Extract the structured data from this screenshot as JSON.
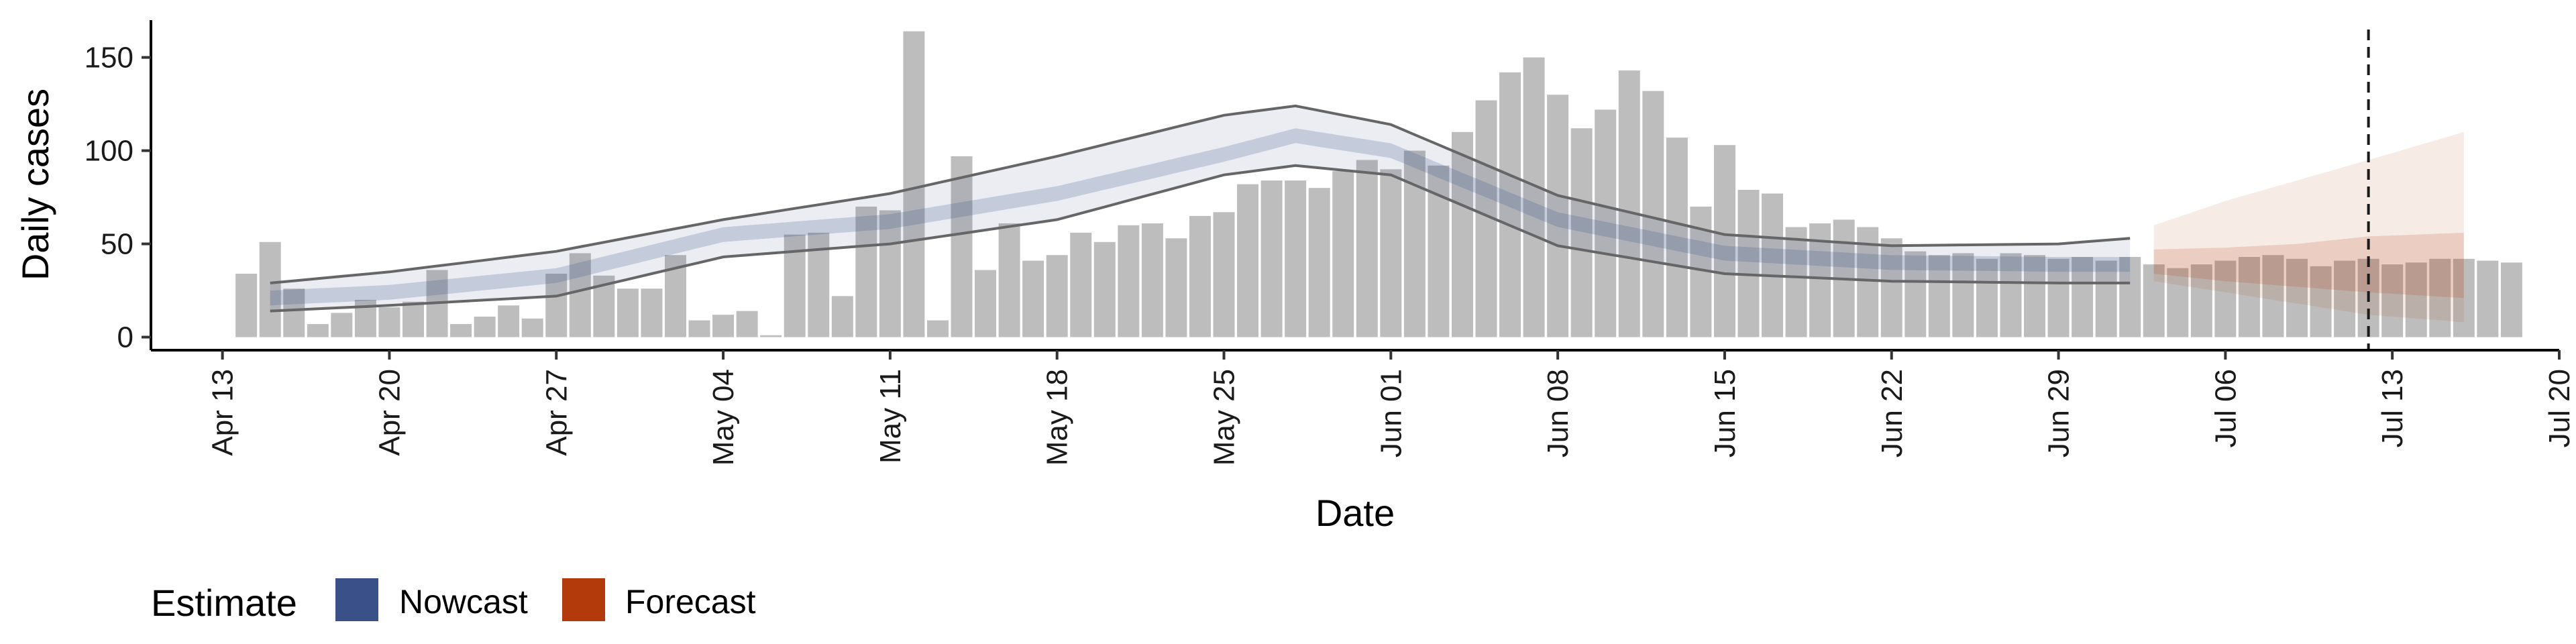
{
  "chart_data": {
    "type": "bar",
    "title": "",
    "xlabel": "Date",
    "ylabel": "Daily cases",
    "ylim": [
      -7,
      170
    ],
    "yticks": [
      0,
      50,
      100,
      150
    ],
    "xlim": [
      "2020-04-10",
      "2020-07-20"
    ],
    "xticks": [
      {
        "date": "2020-04-13",
        "label": "Apr 13"
      },
      {
        "date": "2020-04-20",
        "label": "Apr 20"
      },
      {
        "date": "2020-04-27",
        "label": "Apr 27"
      },
      {
        "date": "2020-05-04",
        "label": "May 04"
      },
      {
        "date": "2020-05-11",
        "label": "May 11"
      },
      {
        "date": "2020-05-18",
        "label": "May 18"
      },
      {
        "date": "2020-05-25",
        "label": "May 25"
      },
      {
        "date": "2020-06-01",
        "label": "Jun 01"
      },
      {
        "date": "2020-06-08",
        "label": "Jun 08"
      },
      {
        "date": "2020-06-15",
        "label": "Jun 15"
      },
      {
        "date": "2020-06-22",
        "label": "Jun 22"
      },
      {
        "date": "2020-06-29",
        "label": "Jun 29"
      },
      {
        "date": "2020-07-06",
        "label": "Jul 06"
      },
      {
        "date": "2020-07-13",
        "label": "Jul 13"
      },
      {
        "date": "2020-07-20",
        "label": "Jul 20"
      }
    ],
    "grid": false,
    "legend": {
      "title": "Estimate",
      "position": "bottom-left",
      "items": [
        {
          "label": "Nowcast",
          "color": "#3a5088"
        },
        {
          "label": "Forecast",
          "color": "#b33a0b"
        }
      ]
    },
    "vline_date": "2020-07-12",
    "colors": {
      "bars": "#bdbdbd",
      "nowcast": "#3a5088",
      "forecast": "#b33a0b",
      "bound_line": "#666666",
      "vline": "#1a1a1a"
    },
    "bars": {
      "start_date": "2020-04-14",
      "values": [
        34,
        51,
        26,
        7,
        13,
        20,
        16,
        19,
        36,
        7,
        11,
        17,
        10,
        34,
        45,
        33,
        26,
        26,
        44,
        9,
        12,
        14,
        1,
        55,
        56,
        22,
        70,
        68,
        164,
        9,
        97,
        36,
        61,
        41,
        44,
        56,
        51,
        60,
        61,
        53,
        65,
        67,
        82,
        84,
        84,
        80,
        89,
        95,
        90,
        100,
        92,
        110,
        127,
        142,
        150,
        130,
        112,
        122,
        143,
        132,
        107,
        70,
        103,
        79,
        77,
        59,
        61,
        63,
        59,
        53,
        46,
        44,
        45,
        42,
        45,
        44,
        42,
        43,
        41,
        43,
        39,
        37,
        39,
        41,
        43,
        44,
        42,
        38,
        41,
        42,
        39,
        40,
        42,
        42,
        41,
        40
      ]
    },
    "nowcast": {
      "start_date": "2020-04-15",
      "end_date": "2020-07-02",
      "knots": [
        {
          "date": "2020-04-15",
          "lower": 14,
          "median": 21,
          "upper": 29
        },
        {
          "date": "2020-04-20",
          "lower": 17,
          "median": 24,
          "upper": 35
        },
        {
          "date": "2020-04-27",
          "lower": 22,
          "median": 33,
          "upper": 46
        },
        {
          "date": "2020-05-04",
          "lower": 43,
          "median": 55,
          "upper": 63
        },
        {
          "date": "2020-05-11",
          "lower": 50,
          "median": 62,
          "upper": 77
        },
        {
          "date": "2020-05-18",
          "lower": 63,
          "median": 77,
          "upper": 97
        },
        {
          "date": "2020-05-25",
          "lower": 87,
          "median": 98,
          "upper": 119
        },
        {
          "date": "2020-05-28",
          "lower": 92,
          "median": 108,
          "upper": 124
        },
        {
          "date": "2020-06-01",
          "lower": 87,
          "median": 100,
          "upper": 114
        },
        {
          "date": "2020-06-08",
          "lower": 49,
          "median": 63,
          "upper": 76
        },
        {
          "date": "2020-06-15",
          "lower": 34,
          "median": 45,
          "upper": 55
        },
        {
          "date": "2020-06-22",
          "lower": 30,
          "median": 40,
          "upper": 49
        },
        {
          "date": "2020-06-29",
          "lower": 29,
          "median": 39,
          "upper": 50
        },
        {
          "date": "2020-07-02",
          "lower": 29,
          "median": 39,
          "upper": 53
        }
      ]
    },
    "forecast": {
      "start_date": "2020-07-03",
      "end_date": "2020-07-16",
      "knots": [
        {
          "date": "2020-07-03",
          "outer_lower": 30,
          "inner_lower": 34,
          "inner_upper": 47,
          "outer_upper": 60
        },
        {
          "date": "2020-07-06",
          "outer_lower": 24,
          "inner_lower": 30,
          "inner_upper": 48,
          "outer_upper": 73
        },
        {
          "date": "2020-07-09",
          "outer_lower": 18,
          "inner_lower": 27,
          "inner_upper": 50,
          "outer_upper": 84
        },
        {
          "date": "2020-07-12",
          "outer_lower": 12,
          "inner_lower": 24,
          "inner_upper": 54,
          "outer_upper": 95
        },
        {
          "date": "2020-07-16",
          "outer_lower": 8,
          "inner_lower": 21,
          "inner_upper": 56,
          "outer_upper": 110
        }
      ]
    }
  }
}
